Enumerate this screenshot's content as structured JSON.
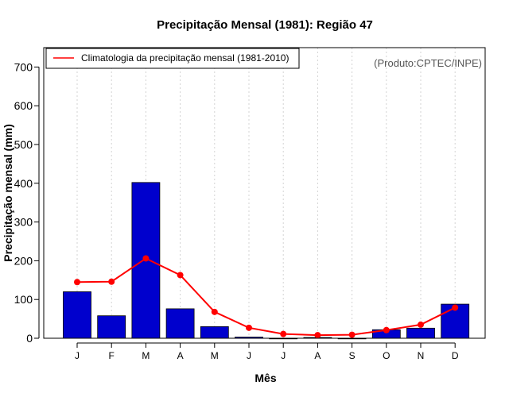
{
  "chart_data": {
    "type": "bar",
    "title": "Precipitação Mensal (1981): Região 47",
    "xlabel": "Mês",
    "ylabel": "Precipitação mensal (mm)",
    "ylim": [
      0,
      750
    ],
    "yticks": [
      0,
      100,
      200,
      300,
      400,
      500,
      600,
      700
    ],
    "categories": [
      "J",
      "F",
      "M",
      "A",
      "M",
      "J",
      "J",
      "A",
      "S",
      "O",
      "N",
      "D"
    ],
    "series": [
      {
        "name": "Precipitação mensal (1981)",
        "kind": "bar",
        "color": "#0000cd",
        "values": [
          120,
          58,
          402,
          76,
          30,
          3,
          0,
          2,
          0,
          22,
          26,
          88
        ]
      },
      {
        "name": "Climatologia da precipitação mensal (1981-2010)",
        "kind": "line",
        "color": "#ff0000",
        "values": [
          145,
          146,
          206,
          163,
          68,
          27,
          11,
          8,
          9,
          21,
          35,
          79
        ]
      }
    ],
    "legend": {
      "label": "Climatologia da precipitação mensal (1981-2010)",
      "placement": "top-left"
    },
    "annotation": "(Produto:CPTEC/INPE)",
    "grid": "vertical dotted"
  }
}
